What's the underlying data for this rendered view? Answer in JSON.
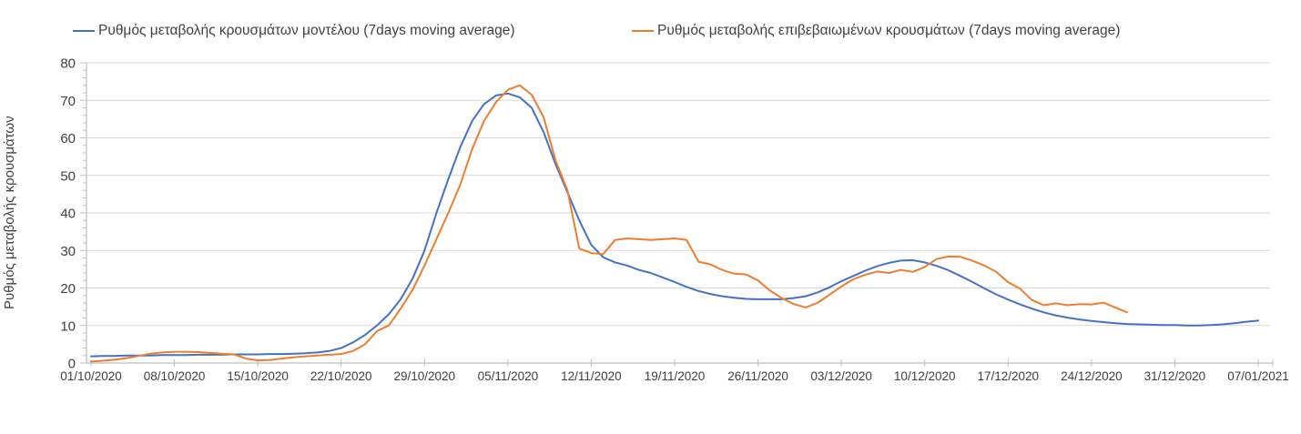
{
  "page": {
    "background": "#ffffff"
  },
  "colors": {
    "model_line": "#4472C4",
    "confirmed_line": "#ED7D31",
    "gridline": "#D9D9D9",
    "axis": "#BFBFBF",
    "label_text": "#404040"
  },
  "chart_data": {
    "type": "line",
    "title": "",
    "xlabel": "",
    "ylabel": "Ρυθμός μεταβολής κρουσμάτων",
    "ylim": [
      0,
      80
    ],
    "y_tick_step": 10,
    "y_minor_tick_step": 2,
    "y_tick_labels": [
      "0",
      "10",
      "20",
      "30",
      "40",
      "50",
      "60",
      "70",
      "80"
    ],
    "grid": "horizontal",
    "legend_position": "top",
    "x_start": "01/10/2020",
    "x_step_days": 1,
    "x_tick_labels": [
      "01/10/2020",
      "08/10/2020",
      "15/10/2020",
      "22/10/2020",
      "29/10/2020",
      "05/11/2020",
      "12/11/2020",
      "19/11/2020",
      "26/11/2020",
      "03/12/2020",
      "10/12/2020",
      "17/12/2020",
      "24/12/2020",
      "31/12/2020",
      "07/01/2021"
    ],
    "series": [
      {
        "name": "Ρυθμός μεταβολής κρουσμάτων μοντέλου (7days moving average)",
        "color": "#4472C4",
        "values": [
          1.8,
          1.9,
          1.9,
          2.0,
          2.0,
          2.0,
          2.1,
          2.1,
          2.1,
          2.2,
          2.2,
          2.2,
          2.3,
          2.3,
          2.3,
          2.4,
          2.4,
          2.5,
          2.6,
          2.8,
          3.2,
          4.0,
          5.5,
          7.5,
          10.0,
          13.0,
          17.0,
          22.5,
          30.0,
          40.0,
          49.0,
          57.5,
          64.5,
          69.0,
          71.3,
          71.8,
          70.8,
          68.0,
          61.5,
          53.0,
          45.5,
          38.0,
          31.5,
          28.2,
          26.8,
          26.0,
          24.8,
          24.0,
          22.8,
          21.6,
          20.3,
          19.2,
          18.4,
          17.8,
          17.4,
          17.1,
          17.0,
          17.0,
          17.0,
          17.3,
          17.8,
          18.8,
          20.2,
          21.8,
          23.2,
          24.6,
          25.8,
          26.7,
          27.3,
          27.4,
          26.8,
          25.9,
          24.7,
          23.2,
          21.6,
          19.9,
          18.3,
          16.9,
          15.6,
          14.5,
          13.5,
          12.7,
          12.1,
          11.6,
          11.2,
          10.9,
          10.6,
          10.4,
          10.3,
          10.2,
          10.1,
          10.1,
          10.0,
          10.0,
          10.1,
          10.3,
          10.6,
          11.0,
          11.3
        ]
      },
      {
        "name": "Ρυθμός μεταβολής επιβεβαιωμένων κρουσμάτων (7days moving average)",
        "color": "#ED7D31",
        "values": [
          0.4,
          0.6,
          0.9,
          1.3,
          1.9,
          2.5,
          2.8,
          3.0,
          3.0,
          2.9,
          2.7,
          2.5,
          2.3,
          1.2,
          0.7,
          0.8,
          1.2,
          1.5,
          1.8,
          2.0,
          2.2,
          2.4,
          3.2,
          5.0,
          8.5,
          10.0,
          14.5,
          19.5,
          26.0,
          33.0,
          40.0,
          47.5,
          57.0,
          64.5,
          69.5,
          72.8,
          74.0,
          71.5,
          65.5,
          54.0,
          46.0,
          30.5,
          29.3,
          29.0,
          32.8,
          33.2,
          33.0,
          32.8,
          33.0,
          33.2,
          32.8,
          27.0,
          26.3,
          24.8,
          23.8,
          23.6,
          22.0,
          19.3,
          17.3,
          15.7,
          14.8,
          16.0,
          18.2,
          20.4,
          22.3,
          23.5,
          24.4,
          24.0,
          24.8,
          24.3,
          25.6,
          27.7,
          28.4,
          28.3,
          27.3,
          26.0,
          24.3,
          21.5,
          19.8,
          16.8,
          15.4,
          15.9,
          15.4,
          15.7,
          15.6,
          16.1,
          14.8,
          13.5
        ]
      }
    ]
  }
}
